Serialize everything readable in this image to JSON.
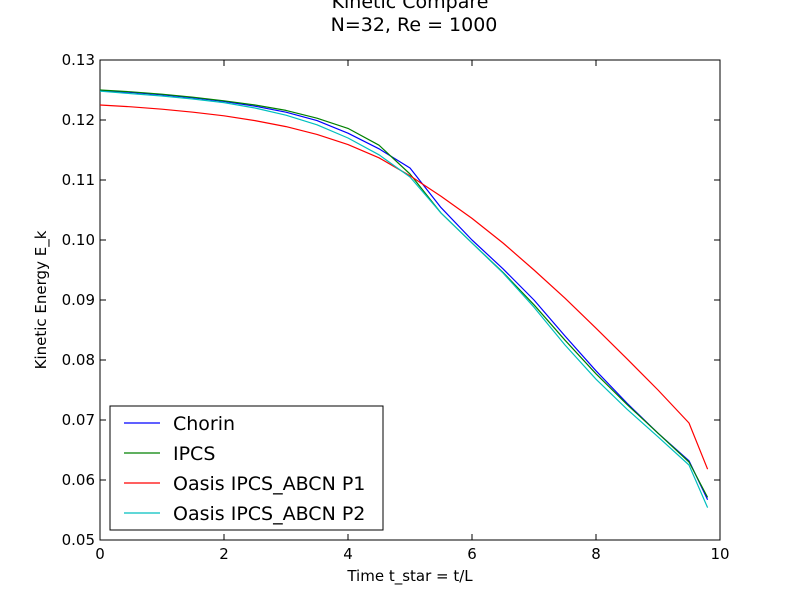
{
  "chart_data": {
    "type": "line",
    "title": "Kinetic Compare",
    "subtitle": "N=32, Re = 1000",
    "xlabel": "Time t_star = t/L",
    "ylabel": "Kinetic Energy E_k",
    "xlim": [
      0,
      10
    ],
    "ylim": [
      0.05,
      0.13
    ],
    "xticks": [
      0,
      2,
      4,
      6,
      8,
      10
    ],
    "yticks": [
      0.05,
      0.06,
      0.07,
      0.08,
      0.09,
      0.1,
      0.11,
      0.12,
      0.13
    ],
    "xtick_labels": [
      "0",
      "2",
      "4",
      "6",
      "8",
      "10"
    ],
    "ytick_labels": [
      "0.05",
      "0.06",
      "0.07",
      "0.08",
      "0.09",
      "0.10",
      "0.11",
      "0.12",
      "0.13"
    ],
    "grid": false,
    "legend_position": "lower-left",
    "series": [
      {
        "name": "Chorin",
        "color": "#0000ff",
        "x": [
          0,
          0.5,
          1,
          1.5,
          2,
          2.5,
          3,
          3.5,
          4,
          4.5,
          5,
          5.5,
          6,
          6.5,
          7,
          7.5,
          8,
          8.5,
          9,
          9.5,
          9.8
        ],
        "y": [
          0.1249,
          0.1246,
          0.1242,
          0.1237,
          0.1231,
          0.1223,
          0.1213,
          0.1199,
          0.1178,
          0.1152,
          0.112,
          0.1054,
          0.1,
          0.0952,
          0.09,
          0.084,
          0.0782,
          0.0728,
          0.0678,
          0.0632,
          0.0567
        ]
      },
      {
        "name": "IPCS",
        "color": "#008000",
        "x": [
          0,
          0.5,
          1,
          1.5,
          2,
          2.5,
          3,
          3.5,
          4,
          4.5,
          5,
          5.5,
          6,
          6.5,
          7,
          7.5,
          8,
          8.5,
          9,
          9.5,
          9.8
        ],
        "y": [
          0.125,
          0.1247,
          0.1243,
          0.1238,
          0.1232,
          0.1225,
          0.1216,
          0.1203,
          0.1186,
          0.1158,
          0.111,
          0.1045,
          0.0995,
          0.0946,
          0.0892,
          0.0833,
          0.0777,
          0.0726,
          0.0678,
          0.063,
          0.0571
        ]
      },
      {
        "name": "Oasis IPCS_ABCN P1",
        "color": "#ff0000",
        "x": [
          0,
          0.5,
          1,
          1.5,
          2,
          2.5,
          3,
          3.5,
          4,
          4.5,
          5,
          5.5,
          6,
          6.5,
          7,
          7.5,
          8,
          8.5,
          9,
          9.5,
          9.8
        ],
        "y": [
          0.1225,
          0.1222,
          0.1218,
          0.1213,
          0.1207,
          0.1199,
          0.1189,
          0.1176,
          0.1159,
          0.1137,
          0.1107,
          0.1073,
          0.1036,
          0.0995,
          0.095,
          0.0903,
          0.0853,
          0.0802,
          0.075,
          0.0695,
          0.0618
        ]
      },
      {
        "name": "Oasis IPCS_ABCN P2",
        "color": "#00bfbf",
        "x": [
          0,
          0.5,
          1,
          1.5,
          2,
          2.5,
          3,
          3.5,
          4,
          4.5,
          5,
          5.5,
          6,
          6.5,
          7,
          7.5,
          8,
          8.5,
          9,
          9.5,
          9.8
        ],
        "y": [
          0.1248,
          0.1244,
          0.124,
          0.1235,
          0.1229,
          0.122,
          0.1208,
          0.1192,
          0.117,
          0.1142,
          0.1105,
          0.1045,
          0.0995,
          0.0945,
          0.0888,
          0.0825,
          0.0768,
          0.0718,
          0.0672,
          0.0625,
          0.0554
        ]
      }
    ]
  }
}
